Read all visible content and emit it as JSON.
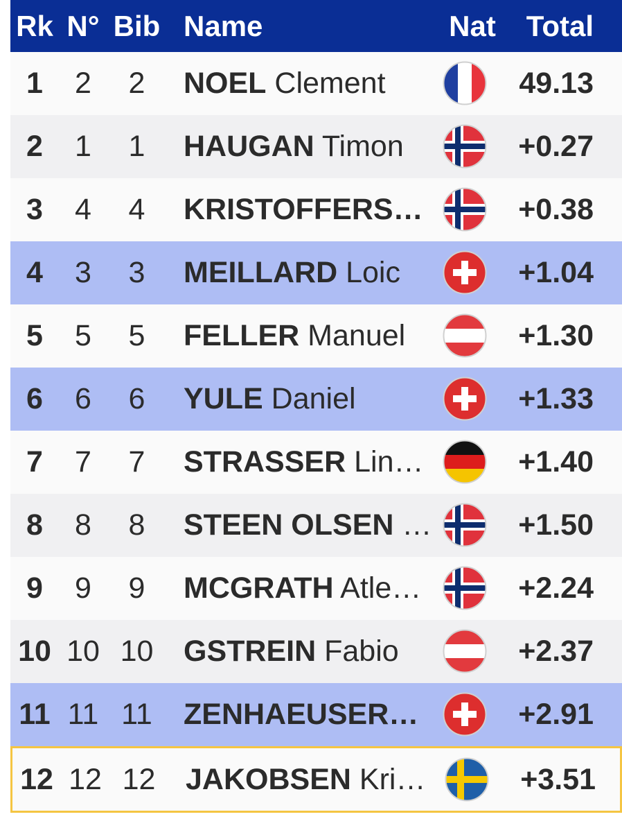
{
  "header": {
    "columns": [
      "Rk",
      "N°",
      "Bib",
      "Name",
      "Nat",
      "Total"
    ]
  },
  "table": {
    "rows": [
      {
        "rk": "1",
        "no": "2",
        "bib": "2",
        "surname": "NOEL",
        "given": "Clement",
        "total": "49.13"
      },
      {
        "rk": "2",
        "no": "1",
        "bib": "1",
        "surname": "HAUGAN",
        "given": "Timon",
        "total": "+0.27"
      },
      {
        "rk": "3",
        "no": "4",
        "bib": "4",
        "surname": "KRISTOFFERS…",
        "total": "+0.38"
      },
      {
        "rk": "4",
        "no": "3",
        "bib": "3",
        "surname": "MEILLARD",
        "given": "Loic",
        "total": "+1.04"
      },
      {
        "rk": "5",
        "no": "5",
        "bib": "5",
        "surname": "FELLER",
        "given": "Manuel",
        "total": "+1.30"
      },
      {
        "rk": "6",
        "no": "6",
        "bib": "6",
        "surname": "YULE",
        "given": "Daniel",
        "total": "+1.33"
      },
      {
        "rk": "7",
        "no": "7",
        "bib": "7",
        "surname": "STRASSER",
        "given": "Lin…",
        "total": "+1.40"
      },
      {
        "rk": "8",
        "no": "8",
        "bib": "8",
        "surname": "STEEN OLSEN",
        "given": "…",
        "total": "+1.50"
      },
      {
        "rk": "9",
        "no": "9",
        "bib": "9",
        "surname": "MCGRATH",
        "given": "Atle…",
        "total": "+2.24"
      },
      {
        "rk": "10",
        "no": "10",
        "bib": "10",
        "surname": "GSTREIN",
        "given": "Fabio",
        "total": "+2.37"
      },
      {
        "rk": "11",
        "no": "11",
        "bib": "11",
        "surname": "ZENHAEUSER…",
        "total": "+2.91"
      },
      {
        "rk": "12",
        "no": "12",
        "bib": "12",
        "surname": "JAKOBSEN",
        "given": "Kri…",
        "total": "+3.51"
      }
    ]
  }
}
